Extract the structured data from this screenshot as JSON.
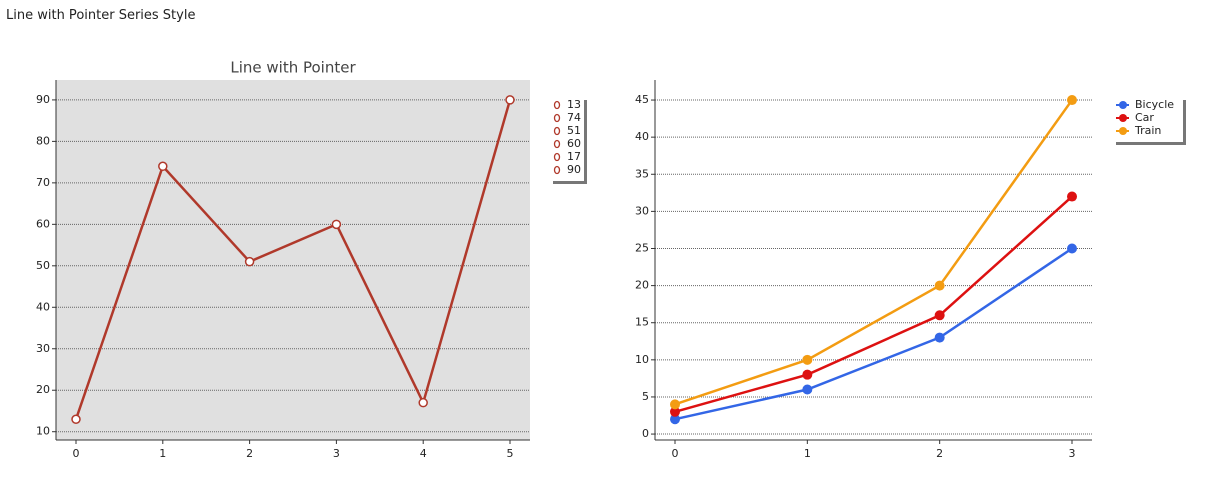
{
  "header": {
    "title": "Line with Pointer Series Style"
  },
  "chart_data": [
    {
      "type": "line",
      "title": "Line with Pointer",
      "categories": [
        "0",
        "1",
        "2",
        "3",
        "4",
        "5"
      ],
      "values": [
        13,
        74,
        51,
        60,
        17,
        90
      ],
      "color": "#b0392b",
      "background": "#e0e0e0",
      "ylim": [
        8,
        94.8
      ],
      "yticks": [
        10,
        20,
        30,
        40,
        50,
        60,
        70,
        80,
        90
      ],
      "grid": true,
      "legend": "right"
    },
    {
      "type": "line",
      "categories": [
        "0",
        "1",
        "2",
        "3"
      ],
      "series": [
        {
          "name": "Bicycle",
          "color": "#3366e6",
          "values": [
            2,
            6,
            13,
            25
          ]
        },
        {
          "name": "Car",
          "color": "#dd1111",
          "values": [
            3,
            8,
            16,
            32
          ]
        },
        {
          "name": "Train",
          "color": "#f39c12",
          "values": [
            4,
            10,
            20,
            45
          ]
        }
      ],
      "ylim": [
        -0.8,
        47.7
      ],
      "yticks": [
        0,
        5,
        10,
        15,
        20,
        25,
        30,
        35,
        40,
        45
      ],
      "grid": true,
      "legend": "right"
    }
  ]
}
